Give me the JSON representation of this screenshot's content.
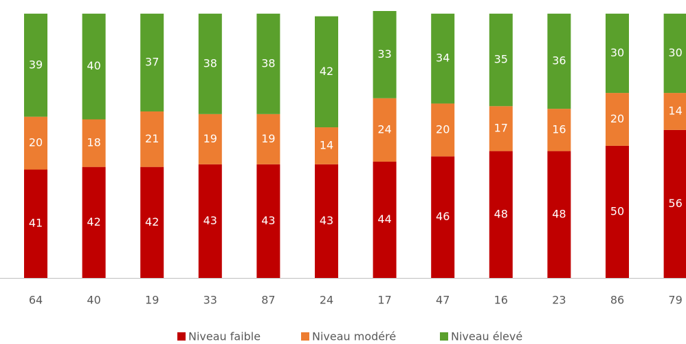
{
  "chart_data": {
    "type": "stacked_bar",
    "categories": [
      "64",
      "40",
      "19",
      "33",
      "87",
      "24",
      "17",
      "47",
      "16",
      "23",
      "86",
      "79"
    ],
    "series": [
      {
        "name": "Niveau faible",
        "color": "#c00000",
        "values": [
          41,
          42,
          42,
          43,
          43,
          43,
          44,
          46,
          48,
          48,
          50,
          56
        ]
      },
      {
        "name": "Niveau modéré",
        "color": "#ed7d31",
        "values": [
          20,
          18,
          21,
          19,
          19,
          14,
          24,
          20,
          17,
          16,
          20,
          14
        ]
      },
      {
        "name": "Niveau élevé",
        "color": "#5aa02c",
        "values": [
          39,
          40,
          37,
          38,
          38,
          42,
          33,
          34,
          35,
          36,
          30,
          30
        ]
      }
    ]
  }
}
